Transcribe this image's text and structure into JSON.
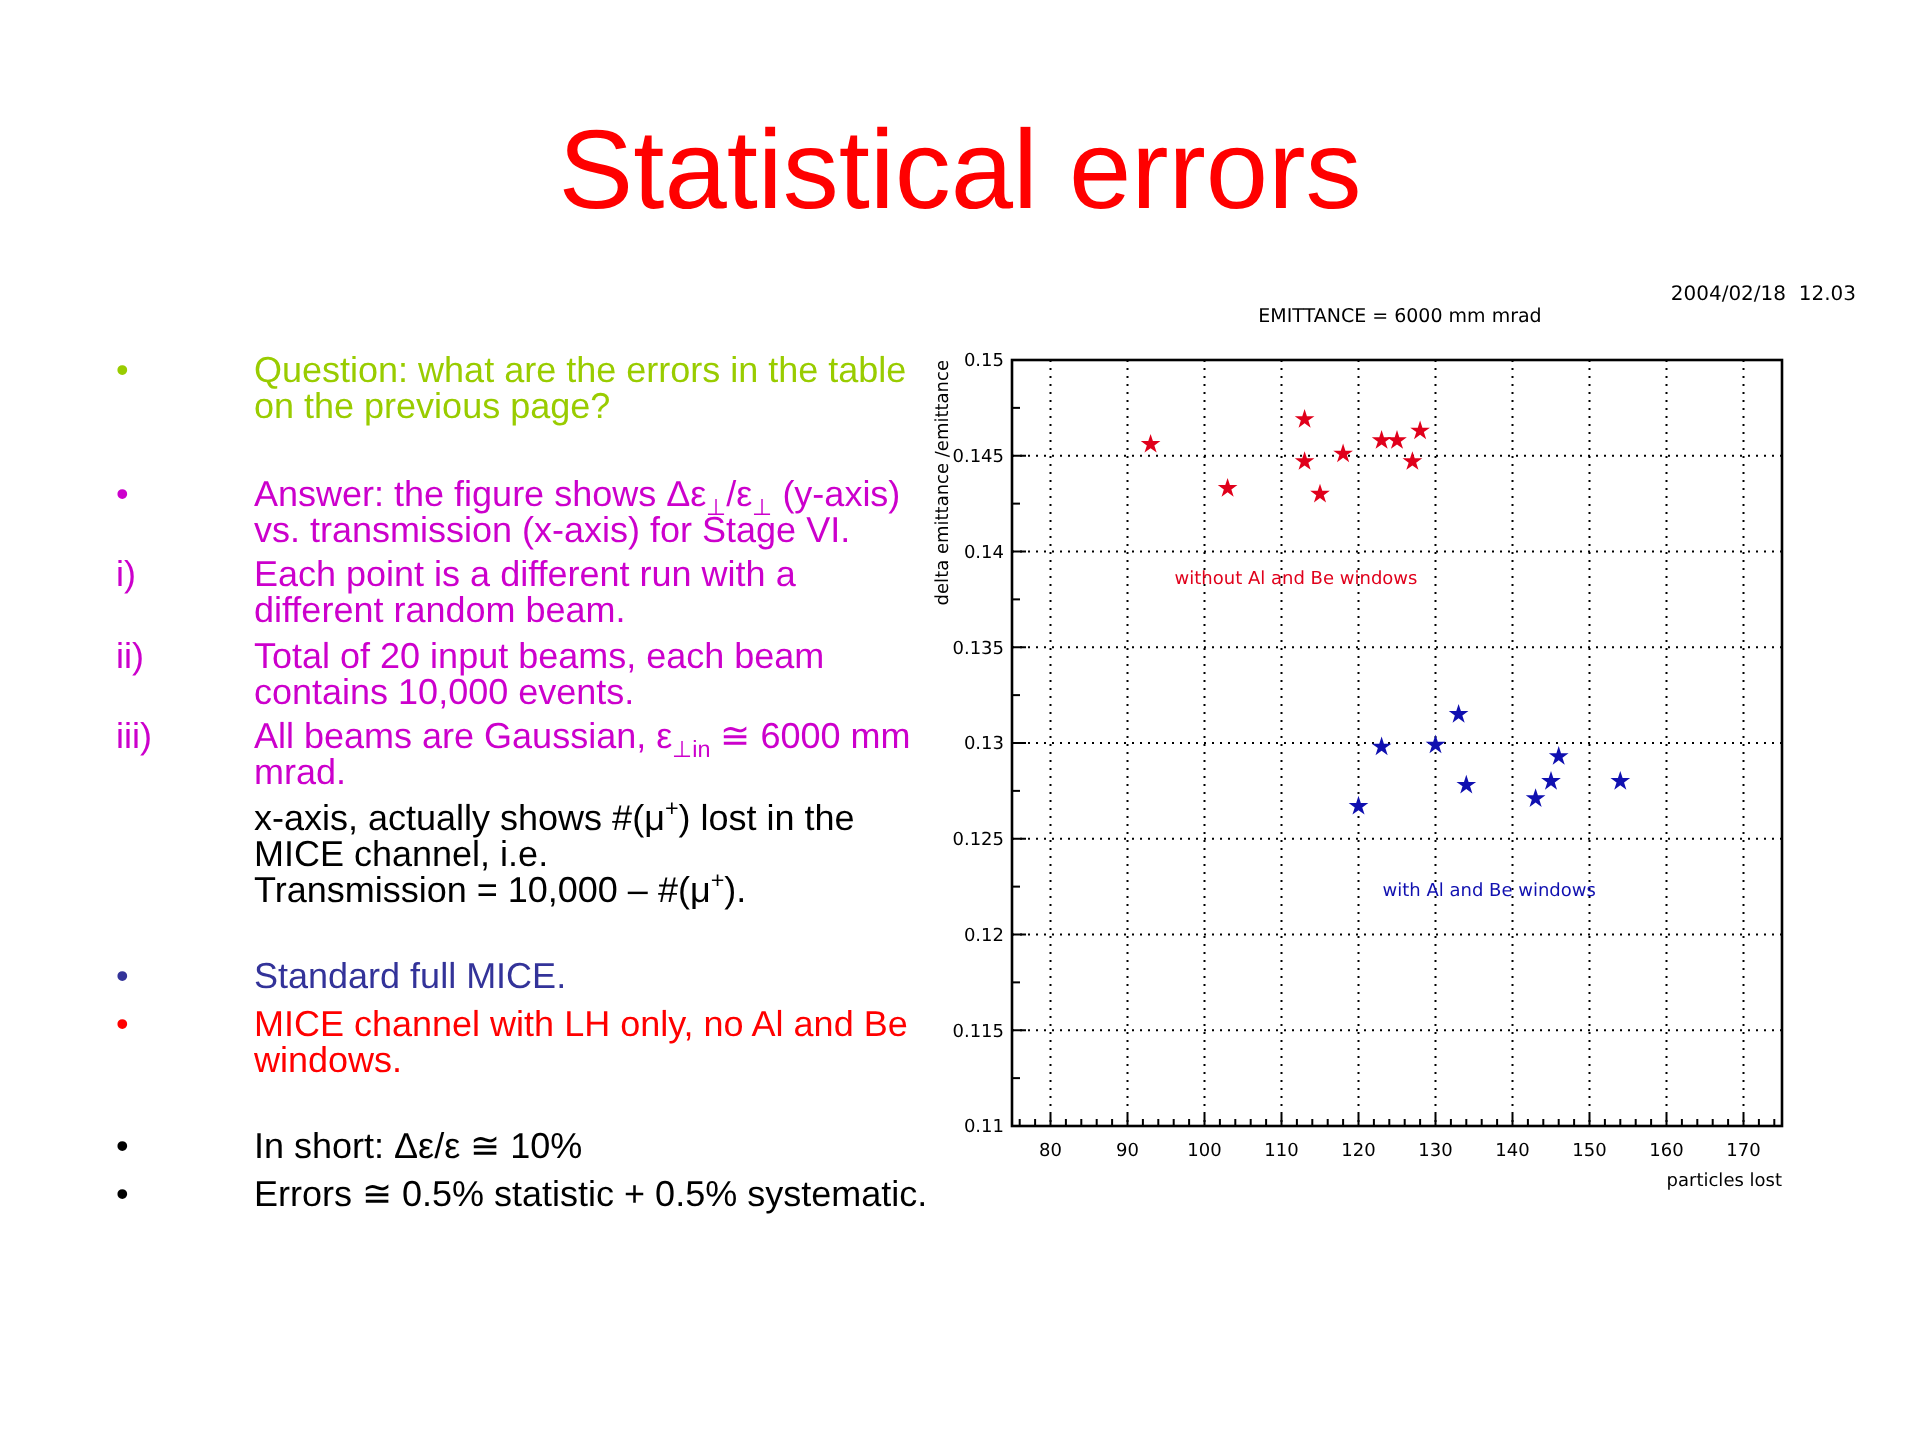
{
  "chart_data": {
    "type": "scatter",
    "title": "Statistical errors",
    "subtitle": "EMITTANCE = 6000 mm mrad",
    "xlabel": "particles lost",
    "ylabel": "delta emittance /emittance",
    "annotations": [
      "2004/02/18  12.03",
      "•\tQuestion: what are the errors in the table on the previous page?",
      "•\tAnswer: the figure shows Δε$_{⊥}$/ε$_{⊥}$ (y-axis) vs. transmission (x-axis) for Stage VI.",
      "i)\tEach point is a different run with a different random beam.",
      "ii)\tTotal of 20 input beams, each beam contains 10,000 events.",
      "iii)\tAll beams are Gaussian, ε$_{⊥in}$ ≅ 6000 mm mrad.",
      "x-axis, actually shows #(μ$^{+}$) lost in the MICE channel, i.e.\nTransmission = 10,000 – #(μ$^{+}$).",
      "•\tStandard full MICE.",
      "•\tMICE channel with LH only, no Al and Be windows.",
      "•\tIn short: Δε/ε ≅ 10%",
      "•\tErrors ≅ 0.5% statistic + 0.5% systematic."
    ],
    "series": [
      {
        "name": "without Al and Be windows",
        "color": "#e0001b",
        "x": [
          93,
          103,
          113,
          113,
          115,
          118,
          123,
          125,
          127,
          128
        ],
        "values": [
          0.1456,
          0.1433,
          0.1469,
          0.1447,
          0.143,
          0.1451,
          0.1458,
          0.1458,
          0.1447,
          0.1463
        ]
      },
      {
        "name": "with Al and Be windows",
        "color": "#1010b0",
        "x": [
          120,
          123,
          130,
          133,
          134,
          143,
          145,
          146,
          154
        ],
        "values": [
          0.1267,
          0.1298,
          0.1299,
          0.1315,
          0.1278,
          0.1271,
          0.128,
          0.1293,
          0.128
        ]
      }
    ],
    "xlim": [
      75,
      175
    ],
    "ylim": [
      0.11,
      0.15
    ],
    "xticks": [
      {
        "value": 76,
        "label": null
      },
      {
        "value": 78,
        "label": null
      },
      80,
      {
        "value": 82,
        "label": null
      },
      {
        "value": 84,
        "label": null
      },
      {
        "value": 86,
        "label": null
      },
      {
        "value": 88,
        "label": null
      },
      90,
      {
        "value": 92,
        "label": null
      },
      {
        "value": 94,
        "label": null
      },
      {
        "value": 96,
        "label": null
      },
      {
        "value": 98,
        "label": null
      },
      100,
      {
        "value": 102,
        "label": null
      },
      {
        "value": 104,
        "label": null
      },
      {
        "value": 106,
        "label": null
      },
      {
        "value": 108,
        "label": null
      },
      110,
      {
        "value": 112,
        "label": null
      },
      {
        "value": 114,
        "label": null
      },
      {
        "value": 116,
        "label": null
      },
      {
        "value": 118,
        "label": null
      },
      120,
      {
        "value": 122,
        "label": null
      },
      {
        "value": 124,
        "label": null
      },
      {
        "value": 126,
        "label": null
      },
      {
        "value": 128,
        "label": null
      },
      130,
      {
        "value": 132,
        "label": null
      },
      {
        "value": 134,
        "label": null
      },
      {
        "value": 136,
        "label": null
      },
      {
        "value": 138,
        "label": null
      },
      140,
      {
        "value": 142,
        "label": null
      },
      {
        "value": 144,
        "label": null
      },
      {
        "value": 146,
        "label": null
      },
      {
        "value": 148,
        "label": null
      },
      150,
      {
        "value": 152,
        "label": null
      },
      {
        "value": 154,
        "label": null
      },
      {
        "value": 156,
        "label": null
      },
      {
        "value": 158,
        "label": null
      },
      160,
      {
        "value": 162,
        "label": null
      },
      {
        "value": 164,
        "label": null
      },
      {
        "value": 166,
        "label": null
      },
      {
        "value": 168,
        "label": null
      },
      170,
      {
        "value": 172,
        "label": null
      },
      {
        "value": 174,
        "label": null
      }
    ],
    "yticks": [
      0.11,
      {
        "value": 0.1125,
        "label": null
      },
      0.115,
      {
        "value": 0.1175,
        "label": null
      },
      0.12,
      {
        "value": 0.1225,
        "label": null
      },
      0.125,
      {
        "value": 0.1275,
        "label": null
      },
      0.13,
      {
        "value": 0.1325,
        "label": null
      },
      0.135,
      {
        "value": 0.1375,
        "label": null
      },
      0.14,
      {
        "value": 0.1425,
        "label": null
      },
      0.145,
      {
        "value": 0.1475,
        "label": null
      },
      0.15
    ],
    "grid": true,
    "marker": "star"
  }
}
